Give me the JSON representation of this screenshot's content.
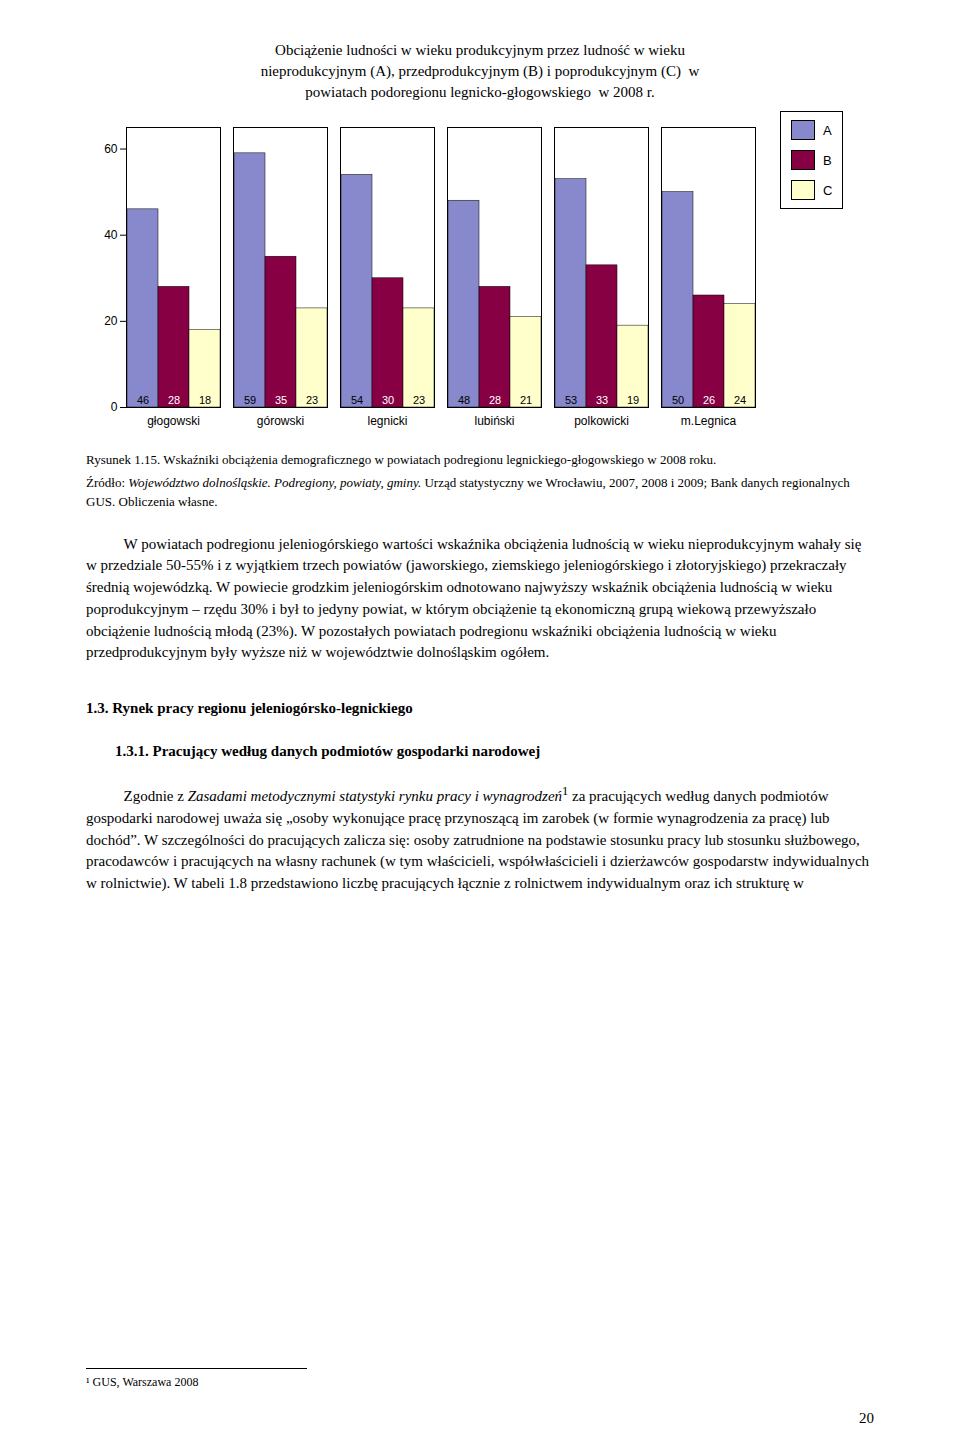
{
  "chart_data": {
    "type": "bar",
    "title": "Obciążenie ludności w wieku produkcyjnym przez ludność w wieku\nnieprodukcyjnym (A), przedprodukcyjnym (B) i poprodukcyjnym (C)  w\npowiatach podoregionu legnicko-głogowskiego  w 2008 r.",
    "categories": [
      "głogowski",
      "górowski",
      "legnicki",
      "lubiński",
      "polkowicki",
      "m.Legnica"
    ],
    "series": [
      {
        "name": "A",
        "color": "#8888cc",
        "values": [
          46,
          59,
          54,
          48,
          53,
          50
        ]
      },
      {
        "name": "B",
        "color": "#880044",
        "values": [
          28,
          35,
          30,
          28,
          33,
          26
        ]
      },
      {
        "name": "C",
        "color": "#ffffcc",
        "values": [
          18,
          23,
          23,
          21,
          19,
          24
        ]
      }
    ],
    "ylim": [
      0,
      65
    ],
    "yticks": [
      0,
      20,
      40,
      60
    ],
    "grid": false,
    "legend": "upper right",
    "data_labels": true,
    "caption": "Rysunek 1.15. Wskaźniki obciążenia demograficznego w powiatach podregionu legnickiego-głogowskiego w 2008 roku."
  },
  "page_text": {
    "source": [
      {
        "text": "Źródło: "
      },
      {
        "text": "Województwo dolnośląskie. Podregiony, powiaty, gminy.",
        "italic": true
      },
      {
        "text": " Urząd statystyczny we Wrocławiu, 2007, 2008 i 2009; Bank danych regionalnych GUS. Obliczenia własne."
      }
    ],
    "paragraph1": [
      {
        "text": "W powiatach podregionu jeleniogórskiego wartości wskaźnika obciążenia ludnością w wieku nieprodukcyjnym wahały się w przedziale 50-55% i z wyjątkiem trzech powiatów (jaworskiego, ziemskiego jeleniogórskiego i złotoryjskiego) przekraczały średnią wojewódzką. W powiecie grodzkim jeleniogórskim odnotowano najwyższy wskaźnik obciążenia ludnością w wieku poprodukcyjnym – rzędu 30% i był to jedyny powiat, w którym obciążenie tą ekonomiczną grupą wiekową przewyższało obciążenie ludnością młodą (23%). W pozostałych powiatach podregionu wskaźniki obciążenia ludnością w wieku przedprodukcyjnym były wyższe niż w województwie dolnośląskim ogółem."
      }
    ],
    "heading1": "1.3. Rynek pracy regionu jeleniogórsko-legnickiego",
    "heading2": "1.3.1. Pracujący według danych podmiotów gospodarki narodowej",
    "paragraph2": [
      {
        "text": "Zgodnie z "
      },
      {
        "text": "Zasadami metodycznymi statystyki rynku pracy i wynagrodzeń",
        "italic": true
      },
      {
        "text": "1",
        "sup": true
      },
      {
        "text": " za pracujących według danych podmiotów gospodarki narodowej uważa się „osoby wykonujące pracę przynoszącą im zarobek (w formie wynagrodzenia za pracę) lub dochód”. W szczególności do pracujących zalicza się: osoby zatrudnione na podstawie stosunku pracy lub stosunku służbowego, pracodawców i pracujących na własny rachunek (w tym właścicieli, współwłaścicieli i dzierżawców gospodarstw indywidualnych w rolnictwie). W tabeli 1.8 przedstawiono liczbę pracujących łącznie z rolnictwem indywidualnym oraz ich strukturę w"
      }
    ],
    "footnote": "¹ GUS, Warszawa 2008",
    "page_number": "20"
  }
}
